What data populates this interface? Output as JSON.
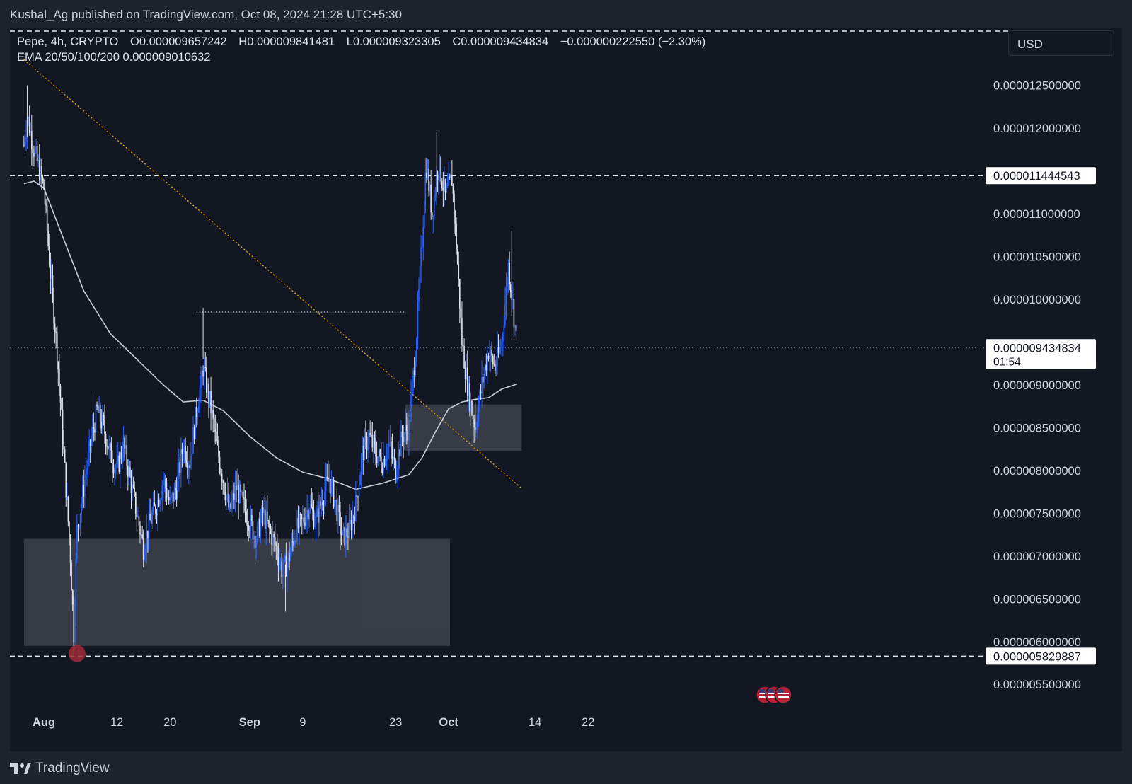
{
  "header": {
    "publisher": "Kushal_Ag published on TradingView.com, Oct 08, 2024 21:28 UTC+5:30"
  },
  "legend": {
    "symbol": "Pepe, 4h, CRYPTO",
    "open": "O0.000009657242",
    "high": "H0.000009841481",
    "low": "L0.000009323305",
    "close": "C0.000009434834",
    "change": "−0.000000222550 (−2.30%)",
    "indicator": "EMA 20/50/100/200  0.000009010632"
  },
  "currency_button": "USD",
  "chart_data": {
    "type": "candlestick",
    "y_scale": [
      5.2,
      12.9
    ],
    "y_unit_note": "",
    "y_ticks": [
      {
        "value": 12.5,
        "label": "0.000012500000"
      },
      {
        "value": 12.0,
        "label": "0.000012000000"
      },
      {
        "value": 11.0,
        "label": "0.000011000000"
      },
      {
        "value": 10.5,
        "label": "0.000010500000"
      },
      {
        "value": 10.0,
        "label": "0.000010000000"
      },
      {
        "value": 9.0,
        "label": "0.000009000000"
      },
      {
        "value": 8.5,
        "label": "0.000008500000"
      },
      {
        "value": 8.0,
        "label": "0.000008000000"
      },
      {
        "value": 7.5,
        "label": "0.000007500000"
      },
      {
        "value": 7.0,
        "label": "0.000007000000"
      },
      {
        "value": 6.5,
        "label": "0.000006500000"
      },
      {
        "value": 6.0,
        "label": "0.000006000000"
      },
      {
        "value": 5.5,
        "label": "0.000005500000"
      }
    ],
    "x_ticks": [
      {
        "day": 0,
        "label": "Aug",
        "bold": true
      },
      {
        "day": 11,
        "label": "12",
        "bold": false
      },
      {
        "day": 19,
        "label": "20",
        "bold": false
      },
      {
        "day": 31,
        "label": "Sep",
        "bold": true
      },
      {
        "day": 39,
        "label": "9",
        "bold": false
      },
      {
        "day": 53,
        "label": "23",
        "bold": false
      },
      {
        "day": 61,
        "label": "Oct",
        "bold": true
      },
      {
        "day": 74,
        "label": "14",
        "bold": false
      },
      {
        "day": 82,
        "label": "22",
        "bold": false
      }
    ],
    "x_range_days": [
      -3,
      92
    ],
    "price_labels": [
      {
        "value": 11.444543,
        "label": "0.000011444543",
        "style": "line"
      },
      {
        "value": 9.434834,
        "label": "0.000009434834",
        "sub": "01:54",
        "style": "current"
      },
      {
        "value": 5.829887,
        "label": "0.000005829887",
        "style": "line"
      }
    ],
    "key_prices": [
      {
        "day": -3,
        "price": 11.8
      },
      {
        "day": -2.5,
        "price": 12.15
      },
      {
        "day": -1.5,
        "price": 11.75
      },
      {
        "day": 0,
        "price": 11.3
      },
      {
        "day": 1,
        "price": 10.3
      },
      {
        "day": 2,
        "price": 9.4
      },
      {
        "day": 3,
        "price": 8.2
      },
      {
        "day": 4,
        "price": 7.0
      },
      {
        "day": 4.5,
        "price": 6.1
      },
      {
        "day": 5,
        "price": 7.3
      },
      {
        "day": 6,
        "price": 7.8
      },
      {
        "day": 7,
        "price": 8.3
      },
      {
        "day": 8,
        "price": 8.7
      },
      {
        "day": 9,
        "price": 8.5
      },
      {
        "day": 10,
        "price": 8.2
      },
      {
        "day": 11,
        "price": 8.0
      },
      {
        "day": 12,
        "price": 8.3
      },
      {
        "day": 13,
        "price": 7.9
      },
      {
        "day": 14,
        "price": 7.5
      },
      {
        "day": 15,
        "price": 7.1
      },
      {
        "day": 16,
        "price": 7.4
      },
      {
        "day": 17,
        "price": 7.6
      },
      {
        "day": 18,
        "price": 7.9
      },
      {
        "day": 19,
        "price": 7.6
      },
      {
        "day": 20,
        "price": 7.8
      },
      {
        "day": 21,
        "price": 8.3
      },
      {
        "day": 22,
        "price": 8.1
      },
      {
        "day": 23,
        "price": 8.7
      },
      {
        "day": 24,
        "price": 9.2
      },
      {
        "day": 25,
        "price": 8.8
      },
      {
        "day": 26,
        "price": 8.3
      },
      {
        "day": 27,
        "price": 7.9
      },
      {
        "day": 28,
        "price": 7.5
      },
      {
        "day": 29,
        "price": 7.8
      },
      {
        "day": 30,
        "price": 7.6
      },
      {
        "day": 31,
        "price": 7.4
      },
      {
        "day": 32,
        "price": 7.2
      },
      {
        "day": 33,
        "price": 7.5
      },
      {
        "day": 34,
        "price": 7.3
      },
      {
        "day": 35,
        "price": 7.1
      },
      {
        "day": 36,
        "price": 6.8
      },
      {
        "day": 37,
        "price": 7.0
      },
      {
        "day": 38,
        "price": 7.3
      },
      {
        "day": 39,
        "price": 7.4
      },
      {
        "day": 40,
        "price": 7.6
      },
      {
        "day": 41,
        "price": 7.4
      },
      {
        "day": 42,
        "price": 7.7
      },
      {
        "day": 43,
        "price": 7.9
      },
      {
        "day": 44,
        "price": 7.6
      },
      {
        "day": 45,
        "price": 7.2
      },
      {
        "day": 46,
        "price": 7.3
      },
      {
        "day": 47,
        "price": 7.6
      },
      {
        "day": 48,
        "price": 8.2
      },
      {
        "day": 49,
        "price": 8.4
      },
      {
        "day": 50,
        "price": 8.2
      },
      {
        "day": 51,
        "price": 8.1
      },
      {
        "day": 52,
        "price": 8.3
      },
      {
        "day": 53,
        "price": 8.0
      },
      {
        "day": 54,
        "price": 8.4
      },
      {
        "day": 55,
        "price": 8.5
      },
      {
        "day": 56,
        "price": 9.4
      },
      {
        "day": 57,
        "price": 10.7
      },
      {
        "day": 57.6,
        "price": 11.6
      },
      {
        "day": 58.5,
        "price": 11.0
      },
      {
        "day": 59.5,
        "price": 11.6
      },
      {
        "day": 60.5,
        "price": 11.2
      },
      {
        "day": 61.5,
        "price": 11.4
      },
      {
        "day": 62.2,
        "price": 10.6
      },
      {
        "day": 63,
        "price": 9.5
      },
      {
        "day": 64,
        "price": 8.9
      },
      {
        "day": 65,
        "price": 8.5
      },
      {
        "day": 66,
        "price": 9.0
      },
      {
        "day": 67,
        "price": 9.4
      },
      {
        "day": 68,
        "price": 9.2
      },
      {
        "day": 69,
        "price": 9.5
      },
      {
        "day": 70,
        "price": 10.4
      },
      {
        "day": 70.6,
        "price": 10.0
      },
      {
        "day": 71.3,
        "price": 9.43
      }
    ],
    "ema_points": [
      {
        "day": -3,
        "price": 11.35
      },
      {
        "day": -1.5,
        "price": 11.38
      },
      {
        "day": 0,
        "price": 11.3
      },
      {
        "day": 3,
        "price": 10.7
      },
      {
        "day": 6,
        "price": 10.1
      },
      {
        "day": 10,
        "price": 9.6
      },
      {
        "day": 14,
        "price": 9.3
      },
      {
        "day": 18,
        "price": 9.0
      },
      {
        "day": 21,
        "price": 8.8
      },
      {
        "day": 24,
        "price": 8.82
      },
      {
        "day": 27,
        "price": 8.7
      },
      {
        "day": 31,
        "price": 8.4
      },
      {
        "day": 35,
        "price": 8.15
      },
      {
        "day": 39,
        "price": 7.98
      },
      {
        "day": 43,
        "price": 7.9
      },
      {
        "day": 47,
        "price": 7.78
      },
      {
        "day": 51,
        "price": 7.85
      },
      {
        "day": 55,
        "price": 7.95
      },
      {
        "day": 57,
        "price": 8.15
      },
      {
        "day": 59,
        "price": 8.45
      },
      {
        "day": 61,
        "price": 8.72
      },
      {
        "day": 63,
        "price": 8.8
      },
      {
        "day": 65,
        "price": 8.83
      },
      {
        "day": 67,
        "price": 8.85
      },
      {
        "day": 69,
        "price": 8.95
      },
      {
        "day": 71.3,
        "price": 9.01
      }
    ],
    "zones": [
      {
        "day_start": -3,
        "day_end": 61.2,
        "price_top": 7.2,
        "price_bottom": 5.95
      },
      {
        "day_start": 54.5,
        "day_end": 72,
        "price_top": 8.77,
        "price_bottom": 8.23
      }
    ],
    "trendline": {
      "day_start": -3,
      "price_start": 12.8,
      "day_end": 72,
      "price_end": 7.79
    },
    "resistance_dots": {
      "day_start": 23,
      "day_end": 54.3,
      "price": 9.85
    },
    "current_price_line": 9.434834,
    "swing_low_marker": {
      "day": 5,
      "price": 5.86
    }
  },
  "branding": {
    "logo_text": "TradingView"
  }
}
